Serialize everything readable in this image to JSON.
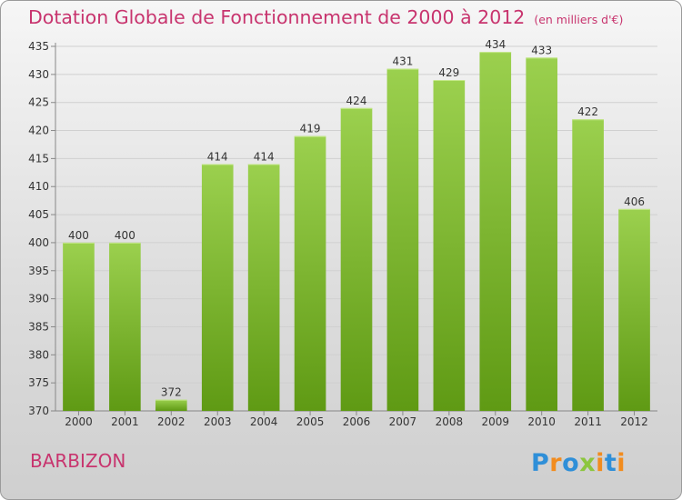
{
  "header": {
    "title": "Dotation Globale de Fonctionnement de 2000 à 2012",
    "subtitle": "(en milliers d'€)"
  },
  "footer": {
    "place": "BARBIZON",
    "logo_text": "Proxiti"
  },
  "colors": {
    "title": "#c8346e",
    "bar_top": "#9bd04e",
    "bar_bottom": "#5f9a14",
    "grid": "#d0d0d0"
  },
  "chart_data": {
    "type": "bar",
    "title": "Dotation Globale de Fonctionnement de 2000 à 2012",
    "subtitle": "(en milliers d'€)",
    "xlabel": "",
    "ylabel": "",
    "categories": [
      "2000",
      "2001",
      "2002",
      "2003",
      "2004",
      "2005",
      "2006",
      "2007",
      "2008",
      "2009",
      "2010",
      "2011",
      "2012"
    ],
    "values": [
      400,
      400,
      372,
      414,
      414,
      419,
      424,
      431,
      429,
      434,
      433,
      422,
      406
    ],
    "ylim": [
      370,
      435
    ],
    "yticks": [
      370,
      375,
      380,
      385,
      390,
      395,
      400,
      405,
      410,
      415,
      420,
      425,
      430,
      435
    ],
    "grid": true,
    "legend": "none"
  }
}
